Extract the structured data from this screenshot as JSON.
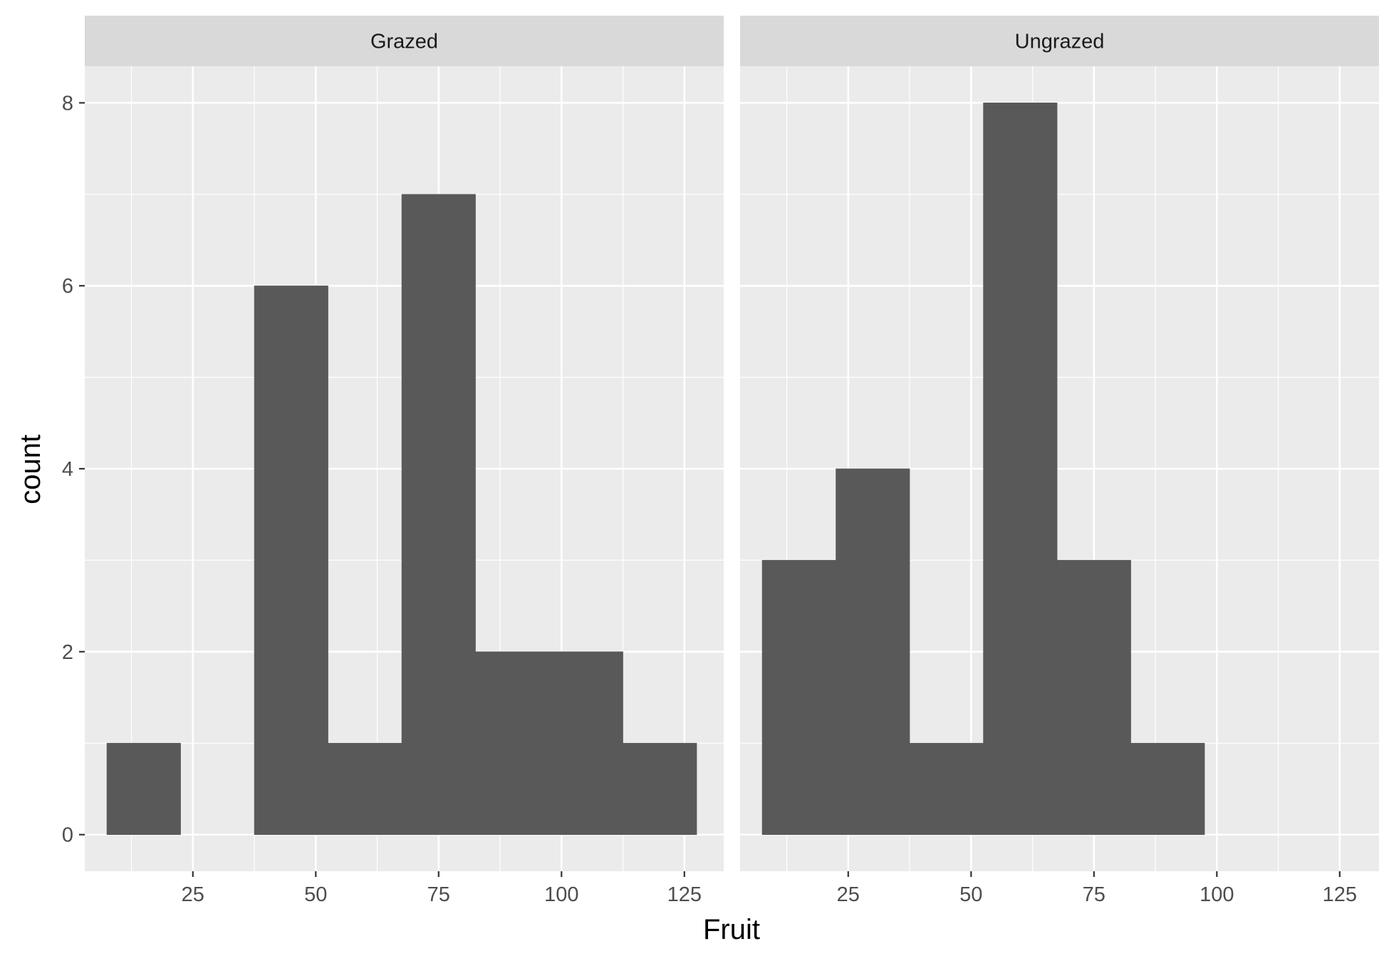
{
  "chart_data": {
    "type": "bar",
    "subtype": "histogram-faceted",
    "title": "",
    "xlabel": "Fruit",
    "ylabel": "count",
    "xlim": [
      3,
      133
    ],
    "ylim": [
      -0.4,
      8.4
    ],
    "x_ticks": [
      25,
      50,
      75,
      100,
      125
    ],
    "y_ticks": [
      0,
      2,
      4,
      6,
      8
    ],
    "grid": true,
    "bin_width": 15,
    "colors": {
      "panel_bg": "#ebebeb",
      "strip_bg": "#d9d9d9",
      "grid": "#ffffff",
      "bar_fill": "#595959"
    },
    "facets": [
      {
        "name": "Grazed",
        "bins": [
          {
            "x0": 7.5,
            "x1": 22.5,
            "count": 1
          },
          {
            "x0": 22.5,
            "x1": 37.5,
            "count": 0
          },
          {
            "x0": 37.5,
            "x1": 52.5,
            "count": 6
          },
          {
            "x0": 52.5,
            "x1": 67.5,
            "count": 1
          },
          {
            "x0": 67.5,
            "x1": 82.5,
            "count": 7
          },
          {
            "x0": 82.5,
            "x1": 97.5,
            "count": 2
          },
          {
            "x0": 97.5,
            "x1": 112.5,
            "count": 2
          },
          {
            "x0": 112.5,
            "x1": 127.5,
            "count": 1
          }
        ]
      },
      {
        "name": "Ungrazed",
        "bins": [
          {
            "x0": 7.5,
            "x1": 22.5,
            "count": 3
          },
          {
            "x0": 22.5,
            "x1": 37.5,
            "count": 4
          },
          {
            "x0": 37.5,
            "x1": 52.5,
            "count": 1
          },
          {
            "x0": 52.5,
            "x1": 67.5,
            "count": 8
          },
          {
            "x0": 67.5,
            "x1": 82.5,
            "count": 3
          },
          {
            "x0": 82.5,
            "x1": 97.5,
            "count": 1
          },
          {
            "x0": 97.5,
            "x1": 112.5,
            "count": 0
          },
          {
            "x0": 112.5,
            "x1": 127.5,
            "count": 0
          }
        ]
      }
    ]
  }
}
